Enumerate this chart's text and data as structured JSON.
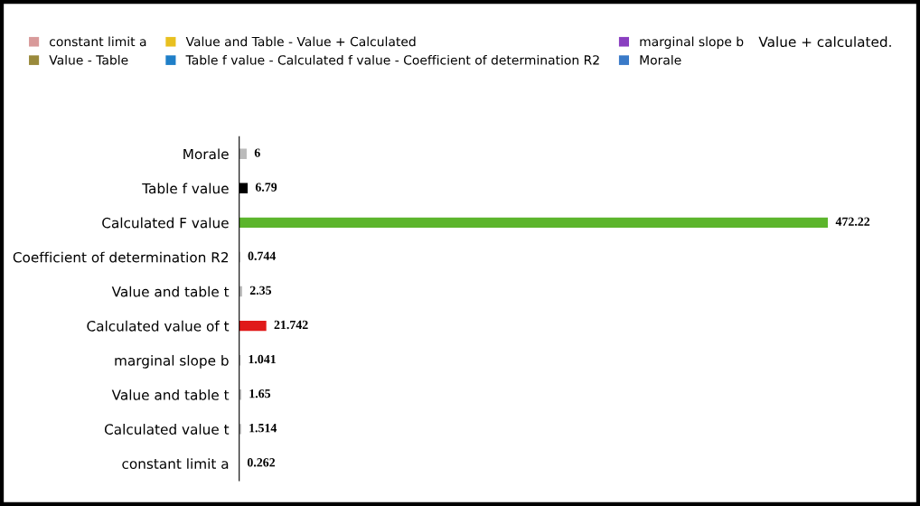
{
  "chart_data": {
    "type": "bar",
    "orientation": "horizontal",
    "categories": [
      "Morale",
      "Table f value",
      "Calculated F value",
      "Coefficient of determination R2",
      "Value and table t",
      "Calculated value of t",
      "marginal slope b",
      "Value and table t",
      "Calculated value t",
      "constant limit a"
    ],
    "series": [
      {
        "values": [
          6,
          6.79,
          472.22,
          0.744,
          2.35,
          21.742,
          1.041,
          1.65,
          1.514,
          0.262
        ],
        "colors": [
          "#bbbbbb",
          "#000000",
          "#5cb52c",
          "#bbbbbb",
          "#bbbbbb",
          "#e01a1a",
          "#bbbbbb",
          "#bbbbbb",
          "#bbbbbb",
          "#bbbbbb"
        ]
      },
      {
        "name": "constant limit a",
        "color": "#d89a9a",
        "values": [
          null,
          null,
          null,
          null,
          null,
          null,
          null,
          null,
          null,
          null
        ]
      },
      {
        "name": "Value - Table",
        "color": "#9a8a3c",
        "values": [
          null,
          null,
          null,
          null,
          null,
          null,
          null,
          null,
          null,
          null
        ]
      },
      {
        "name": "Value and Table - Value + Calculated",
        "color": "#e8c020",
        "values": [
          null,
          null,
          null,
          null,
          null,
          null,
          null,
          null,
          null,
          null
        ]
      },
      {
        "name": "Table f value - Calculated f value - Coefficient of determination R2",
        "color": "#1f7fc8",
        "values": [
          null,
          null,
          null,
          null,
          null,
          null,
          null,
          null,
          null,
          null
        ]
      },
      {
        "name": "marginal slope b",
        "color": "#8a3fc0",
        "values": [
          null,
          null,
          null,
          null,
          null,
          null,
          null,
          null,
          null,
          null
        ]
      },
      {
        "name": "Morale",
        "color": "#3a7ac8",
        "values": [
          null,
          null,
          null,
          null,
          null,
          null,
          null,
          null,
          null,
          null
        ]
      }
    ],
    "data_labels": true,
    "legend": "top",
    "annotations": [
      "Value + calculated."
    ]
  }
}
